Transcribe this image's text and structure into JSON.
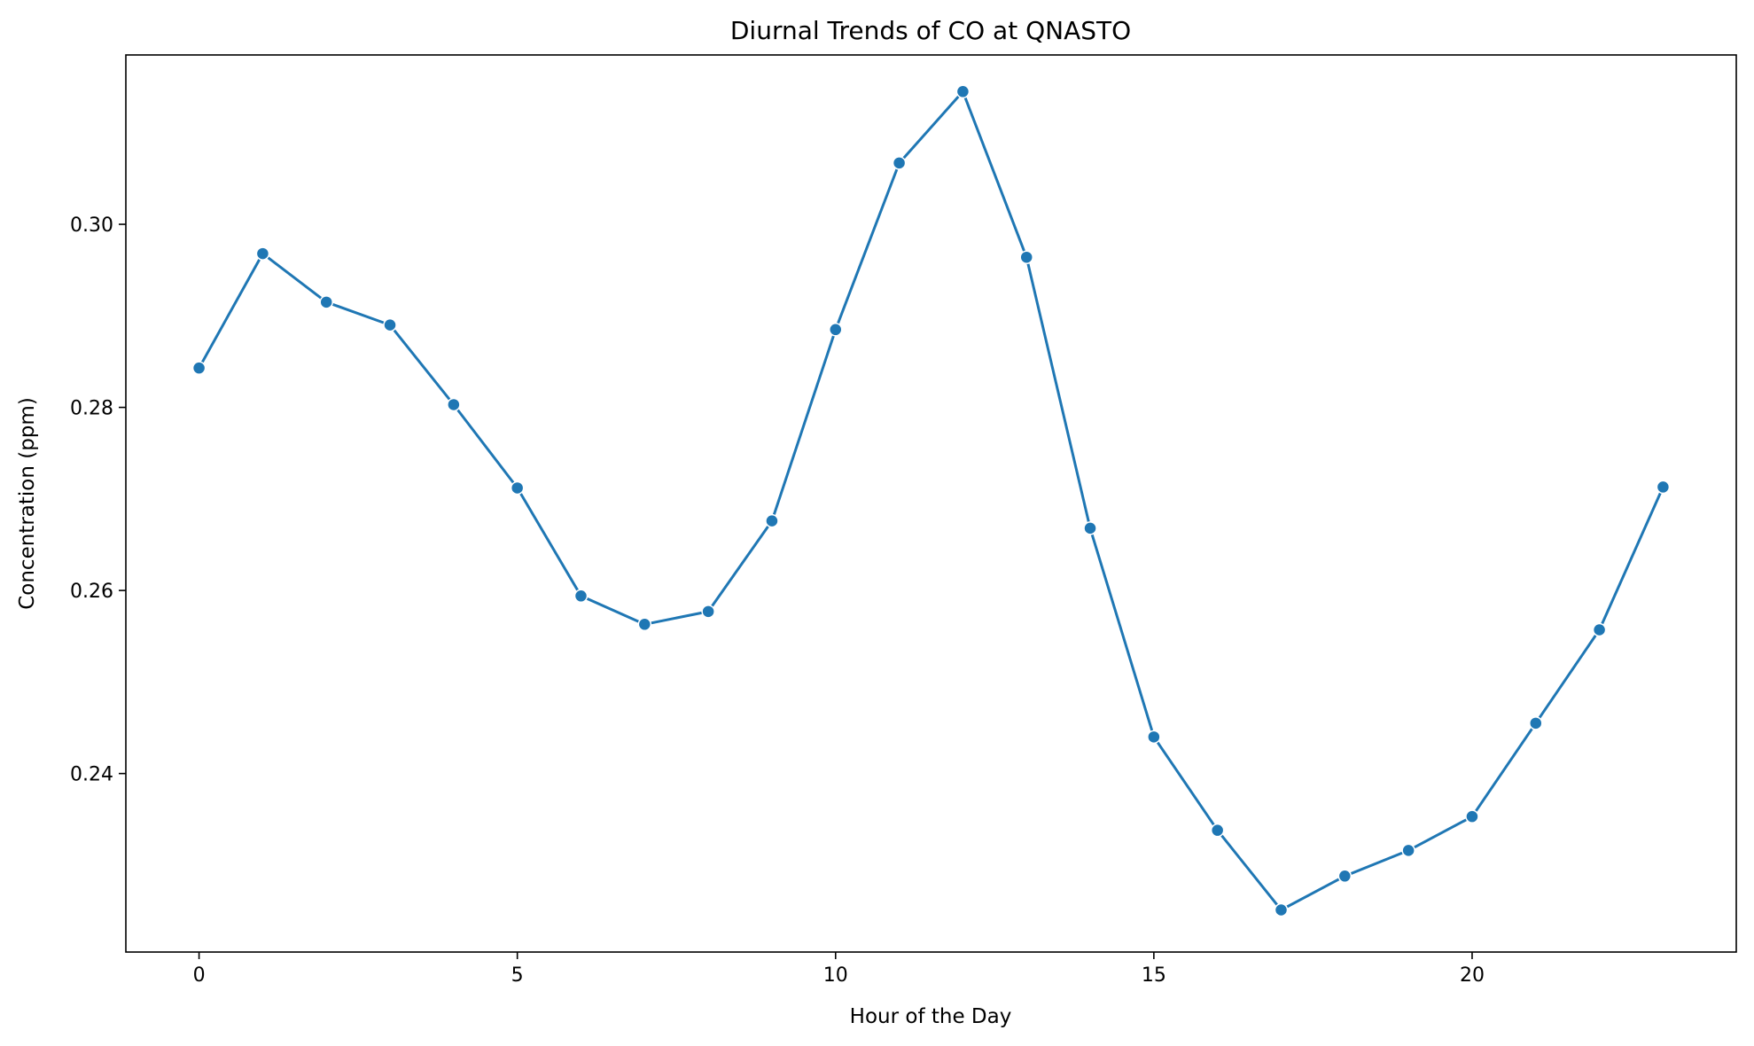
{
  "chart_data": {
    "type": "line",
    "title": "Diurnal Trends of CO at QNASTO",
    "xlabel": "Hour of the Day",
    "ylabel": "Concentration (ppm)",
    "xlim": [
      -1.15,
      24.15
    ],
    "ylim": [
      0.2205,
      0.3185
    ],
    "xticks": [
      0,
      5,
      10,
      15,
      20
    ],
    "xtick_labels": [
      "0",
      "5",
      "10",
      "15",
      "20"
    ],
    "yticks": [
      0.24,
      0.26,
      0.28,
      0.3
    ],
    "ytick_labels": [
      "0.24",
      "0.26",
      "0.28",
      "0.30"
    ],
    "grid": false,
    "legend": "none",
    "series": [
      {
        "color": "#1f77b4",
        "marker": "circle",
        "x": [
          0,
          1,
          2,
          3,
          4,
          5,
          6,
          7,
          8,
          9,
          10,
          11,
          12,
          13,
          14,
          15,
          16,
          17,
          18,
          19,
          20,
          21,
          22,
          23
        ],
        "values": [
          0.2843,
          0.2968,
          0.2915,
          0.289,
          0.2803,
          0.2712,
          0.2594,
          0.2563,
          0.2577,
          0.2676,
          0.2885,
          0.3067,
          0.3145,
          0.2964,
          0.2668,
          0.244,
          0.2338,
          0.2251,
          0.2288,
          0.2316,
          0.2353,
          0.2455,
          0.2557,
          0.2713
        ]
      }
    ]
  }
}
